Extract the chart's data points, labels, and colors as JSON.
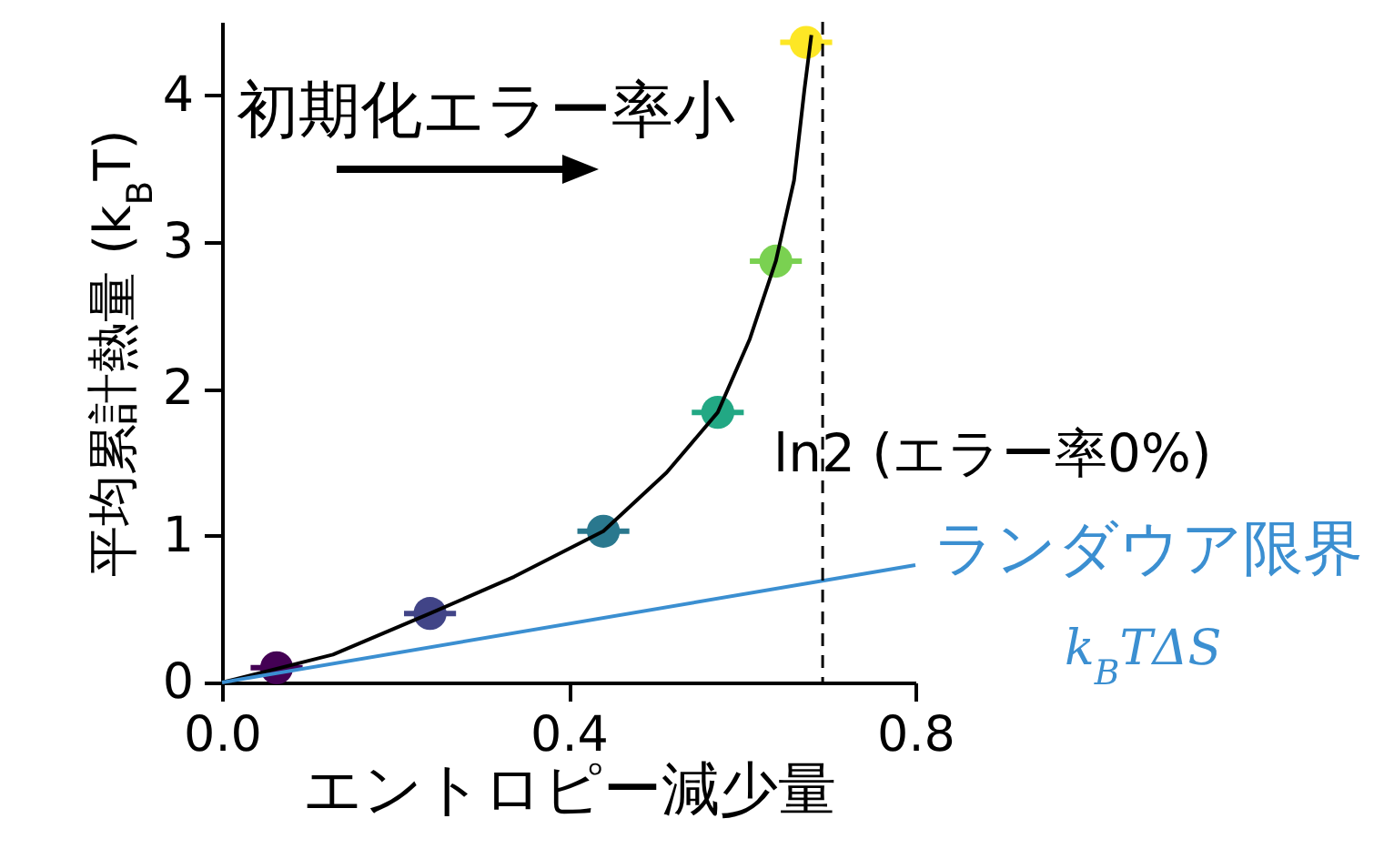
{
  "chart_data": {
    "type": "scatter",
    "xlabel": "エントロピー減少量",
    "ylabel": "平均累計熱量 (k$_{B}$T)",
    "xlim": [
      0,
      0.8
    ],
    "ylim": [
      0,
      4.5
    ],
    "xticks": [
      {
        "value": 0,
        "label": "0.0"
      },
      0.4,
      0.8
    ],
    "yticks": [
      0,
      1,
      2,
      3,
      4
    ],
    "grid": false,
    "series": [
      {
        "marker": "circle",
        "x": [
          0.063,
          0.24,
          0.44,
          0.572,
          0.639,
          0.674
        ],
        "values": [
          0.1,
          0.47,
          1.03,
          1.84,
          2.87,
          4.36
        ],
        "colors": [
          "#440154",
          "#414487",
          "#2a788e",
          "#22a884",
          "#7ad151",
          "#fde725"
        ],
        "xerrors": [
          0.03,
          0.03,
          0.03,
          0.03,
          0.03,
          0.03
        ]
      },
      {
        "type": "line",
        "color": "#000000",
        "x": [
          0,
          0.128,
          0.24,
          0.337,
          0.44,
          0.513,
          0.572,
          0.609,
          0.639,
          0.66,
          0.672,
          0.68
        ],
        "values": [
          0,
          0.19,
          0.47,
          0.72,
          1.03,
          1.43,
          1.84,
          2.34,
          2.87,
          3.42,
          4.04,
          4.41
        ]
      },
      {
        "type": "line",
        "name": "ランダウア限界",
        "color": "#3b8fd1",
        "x": [
          0,
          0.8
        ],
        "values": [
          0,
          0.8
        ]
      }
    ],
    "ref_lines": [
      {
        "axis": "x",
        "value": 0.693,
        "label": "ln2 (エラー率0%)",
        "color": "#000000",
        "line_style": "dashed"
      }
    ],
    "annotations": [
      "初期化エラー率小",
      "k$_{B}$TΔS"
    ]
  }
}
